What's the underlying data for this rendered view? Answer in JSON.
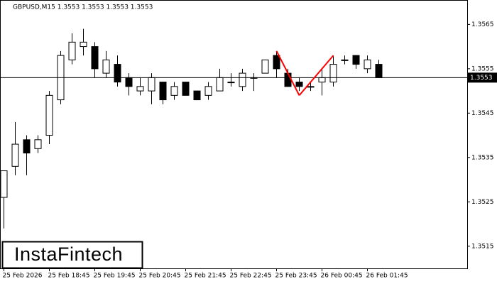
{
  "chart_data": {
    "type": "candlestick",
    "title": "GBPUSD,M15  1.3553 1.3553 1.3553 1.3553",
    "watermark": "InstaFintech",
    "categories": [
      "25 Feb 2026",
      null,
      null,
      null,
      "25 Feb 18:45",
      null,
      null,
      null,
      "25 Feb 19:45",
      null,
      null,
      null,
      "25 Feb 20:45",
      null,
      null,
      null,
      "25 Feb 21:45",
      null,
      null,
      null,
      "25 Feb 22:45",
      null,
      null,
      null,
      "25 Feb 23:45",
      null,
      null,
      null,
      "26 Feb 00:45",
      null,
      null,
      null,
      "26 Feb 01:45",
      null
    ],
    "open": [
      1.3526,
      1.3533,
      1.3539,
      1.3537,
      1.354,
      1.3548,
      1.3557,
      1.356,
      1.356,
      1.3554,
      1.3556,
      1.3553,
      1.355,
      1.355,
      1.3552,
      1.3549,
      1.3552,
      1.355,
      1.3549,
      1.355,
      1.3552,
      1.3551,
      1.3553,
      1.3554,
      1.3558,
      1.3554,
      1.3552,
      1.3551,
      1.3552,
      1.3552,
      1.3557,
      1.3558,
      1.3555,
      1.3556
    ],
    "high": [
      1.3532,
      1.3543,
      1.354,
      1.354,
      1.355,
      1.3559,
      1.3563,
      1.3564,
      1.3561,
      1.3559,
      1.3558,
      1.3554,
      1.3553,
      1.3554,
      1.3552,
      1.3552,
      1.3552,
      1.355,
      1.3552,
      1.3555,
      1.3554,
      1.3555,
      1.3554,
      1.3557,
      1.3559,
      1.3555,
      1.3553,
      1.3552,
      1.3555,
      1.3558,
      1.3558,
      1.3558,
      1.3558,
      1.3557
    ],
    "low": [
      1.3519,
      1.3531,
      1.3531,
      1.3536,
      1.3538,
      1.3547,
      1.3556,
      1.3558,
      1.3553,
      1.3553,
      1.3551,
      1.3549,
      1.3549,
      1.3547,
      1.3547,
      1.3548,
      1.3549,
      1.3548,
      1.3548,
      1.355,
      1.3551,
      1.355,
      1.355,
      1.3554,
      1.3553,
      1.3551,
      1.355,
      1.355,
      1.3549,
      1.3551,
      1.3556,
      1.3555,
      1.3554,
      1.3553
    ],
    "close": [
      1.3532,
      1.3538,
      1.3536,
      1.3539,
      1.3549,
      1.3558,
      1.3561,
      1.3561,
      1.3555,
      1.3557,
      1.3552,
      1.3551,
      1.3551,
      1.3553,
      1.3548,
      1.3551,
      1.3549,
      1.3548,
      1.3551,
      1.3553,
      1.3552,
      1.3554,
      1.3553,
      1.3557,
      1.3555,
      1.3551,
      1.3551,
      1.3551,
      1.3553,
      1.3556,
      1.3557,
      1.3556,
      1.3557,
      1.3553
    ],
    "up_color": "#ffffff",
    "down_color": "#000000",
    "pattern": {
      "color": "#ff0000",
      "values": [
        null,
        null,
        null,
        null,
        null,
        null,
        null,
        null,
        null,
        null,
        null,
        null,
        null,
        null,
        null,
        null,
        null,
        null,
        null,
        null,
        null,
        null,
        null,
        null,
        1.3559,
        null,
        1.3549,
        null,
        null,
        1.3558,
        null,
        null,
        null,
        null
      ]
    },
    "last_price": 1.3553,
    "ylim": [
      1.351,
      1.35705
    ],
    "yticks": [
      1.3565,
      1.3555,
      1.3545,
      1.3535,
      1.3525,
      1.3515
    ]
  }
}
